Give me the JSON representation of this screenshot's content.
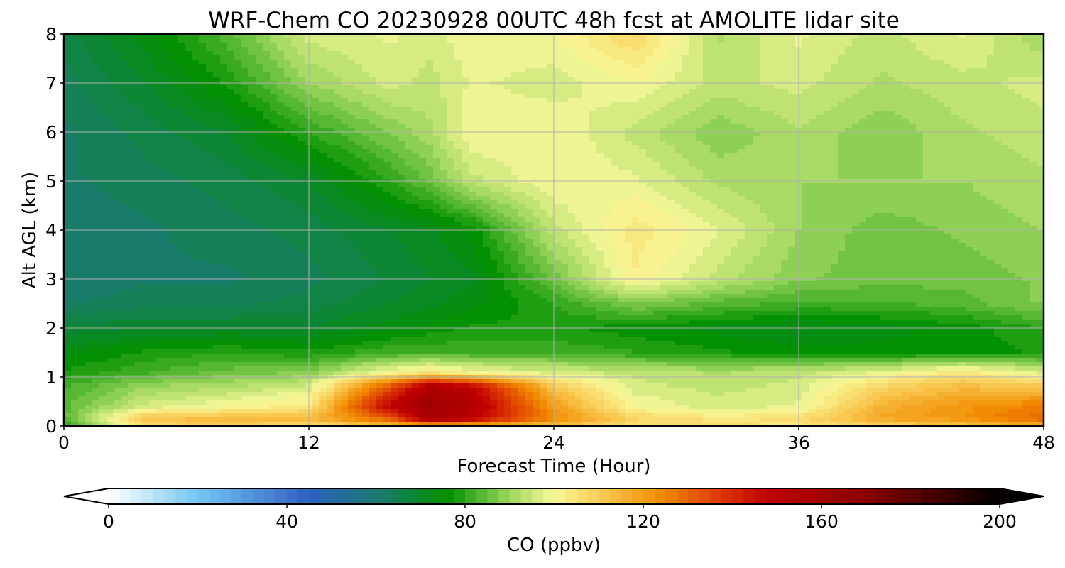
{
  "chart_data": {
    "type": "heatmap",
    "title": "WRF-Chem CO  20230928 00UTC 48h fcst at AMOLITE lidar site",
    "xlabel": "Forecast Time (Hour)",
    "ylabel": "Alt AGL (km)",
    "xlim": [
      0,
      48
    ],
    "ylim": [
      0,
      8
    ],
    "x_ticks": [
      0,
      12,
      24,
      36,
      48
    ],
    "y_ticks": [
      0,
      1,
      2,
      3,
      4,
      5,
      6,
      7,
      8
    ],
    "grid": true,
    "colorbar": {
      "label": "CO  (ppbv)",
      "range": [
        0,
        200
      ],
      "ticks": [
        0,
        40,
        80,
        120,
        160,
        200
      ],
      "extend": "both",
      "stops": [
        {
          "value": 0,
          "color": "#ffffff"
        },
        {
          "value": 20,
          "color": "#73c6f4"
        },
        {
          "value": 45,
          "color": "#3060c0"
        },
        {
          "value": 60,
          "color": "#1b7a73"
        },
        {
          "value": 76,
          "color": "#009000"
        },
        {
          "value": 90,
          "color": "#9cd65c"
        },
        {
          "value": 100,
          "color": "#f8f898"
        },
        {
          "value": 112,
          "color": "#f9c54c"
        },
        {
          "value": 124,
          "color": "#f08a00"
        },
        {
          "value": 136,
          "color": "#e04000"
        },
        {
          "value": 148,
          "color": "#c00000"
        },
        {
          "value": 170,
          "color": "#8a0000"
        },
        {
          "value": 200,
          "color": "#000000"
        }
      ]
    },
    "x": [
      0,
      4,
      8,
      12,
      16,
      18,
      20,
      24,
      28,
      32,
      36,
      40,
      44,
      48
    ],
    "y": [
      0,
      0.15,
      0.4,
      0.8,
      1.1,
      1.5,
      2,
      2.5,
      3,
      4,
      5,
      6,
      7,
      8
    ],
    "z": [
      [
        80,
        108,
        110,
        106,
        112,
        114,
        114,
        112,
        106,
        106,
        104,
        108,
        112,
        116
      ],
      [
        84,
        112,
        114,
        114,
        132,
        160,
        150,
        124,
        108,
        104,
        106,
        118,
        122,
        130
      ],
      [
        84,
        96,
        100,
        104,
        150,
        162,
        154,
        120,
        100,
        96,
        98,
        116,
        122,
        126
      ],
      [
        82,
        90,
        92,
        96,
        134,
        156,
        148,
        112,
        96,
        94,
        96,
        108,
        114,
        112
      ],
      [
        78,
        82,
        86,
        88,
        100,
        104,
        100,
        96,
        94,
        92,
        94,
        98,
        104,
        96
      ],
      [
        74,
        78,
        80,
        78,
        82,
        82,
        82,
        82,
        80,
        78,
        76,
        76,
        76,
        78
      ],
      [
        68,
        70,
        70,
        70,
        74,
        76,
        78,
        78,
        76,
        74,
        72,
        74,
        76,
        80
      ],
      [
        62,
        64,
        64,
        66,
        70,
        72,
        74,
        80,
        88,
        84,
        82,
        82,
        84,
        88
      ],
      [
        60,
        62,
        62,
        64,
        68,
        70,
        72,
        86,
        102,
        94,
        88,
        86,
        86,
        88
      ],
      [
        60,
        62,
        64,
        66,
        70,
        72,
        76,
        94,
        104,
        98,
        90,
        86,
        88,
        90
      ],
      [
        62,
        64,
        66,
        70,
        80,
        86,
        94,
        100,
        98,
        92,
        90,
        90,
        90,
        92
      ],
      [
        62,
        66,
        70,
        80,
        88,
        92,
        100,
        100,
        94,
        88,
        92,
        88,
        92,
        94
      ],
      [
        64,
        70,
        78,
        90,
        96,
        94,
        98,
        96,
        100,
        94,
        96,
        92,
        94,
        96
      ],
      [
        66,
        74,
        84,
        96,
        98,
        96,
        100,
        100,
        108,
        92,
        98,
        94,
        98,
        90
      ]
    ]
  }
}
